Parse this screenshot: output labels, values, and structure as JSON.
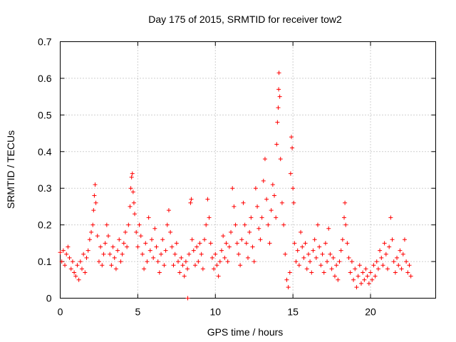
{
  "chart_data": {
    "type": "scatter",
    "title": "Day 175 of 2015, SRMTID for receiver tow2",
    "xlabel": "GPS time / hours",
    "ylabel": "SRMTID / TECUs",
    "xlim": [
      0,
      24.2
    ],
    "ylim": [
      0,
      0.7
    ],
    "x_ticks": [
      0,
      5,
      10,
      15,
      20
    ],
    "x_tick_labels": [
      "0",
      "5",
      "10",
      "15",
      "20"
    ],
    "y_ticks": [
      0,
      0.1,
      0.2,
      0.3,
      0.4,
      0.5,
      0.6,
      0.7
    ],
    "y_tick_labels": [
      "0",
      "0.1",
      "0.2",
      "0.3",
      "0.4",
      "0.5",
      "0.6",
      "0.7"
    ],
    "grid": true,
    "marker": "plus",
    "color": "#ff0000",
    "series": [
      {
        "name": "SRMTID",
        "points": [
          [
            0.0,
            0.125
          ],
          [
            0.1,
            0.1
          ],
          [
            0.2,
            0.13
          ],
          [
            0.3,
            0.09
          ],
          [
            0.4,
            0.12
          ],
          [
            0.5,
            0.14
          ],
          [
            0.6,
            0.11
          ],
          [
            0.7,
            0.08
          ],
          [
            0.8,
            0.1
          ],
          [
            0.9,
            0.07
          ],
          [
            1.0,
            0.06
          ],
          [
            1.1,
            0.09
          ],
          [
            1.2,
            0.05
          ],
          [
            1.3,
            0.1
          ],
          [
            1.4,
            0.08
          ],
          [
            1.5,
            0.12
          ],
          [
            1.6,
            0.07
          ],
          [
            1.7,
            0.11
          ],
          [
            1.8,
            0.13
          ],
          [
            1.9,
            0.16
          ],
          [
            2.0,
            0.18
          ],
          [
            2.1,
            0.2
          ],
          [
            2.15,
            0.24
          ],
          [
            2.2,
            0.28
          ],
          [
            2.25,
            0.31
          ],
          [
            2.3,
            0.26
          ],
          [
            2.4,
            0.17
          ],
          [
            2.5,
            0.1
          ],
          [
            2.6,
            0.14
          ],
          [
            2.7,
            0.09
          ],
          [
            2.8,
            0.12
          ],
          [
            2.9,
            0.15
          ],
          [
            3.0,
            0.2
          ],
          [
            3.1,
            0.17
          ],
          [
            3.2,
            0.12
          ],
          [
            3.3,
            0.09
          ],
          [
            3.4,
            0.14
          ],
          [
            3.5,
            0.11
          ],
          [
            3.6,
            0.08
          ],
          [
            3.7,
            0.13
          ],
          [
            3.8,
            0.16
          ],
          [
            3.9,
            0.1
          ],
          [
            4.0,
            0.12
          ],
          [
            4.1,
            0.15
          ],
          [
            4.2,
            0.18
          ],
          [
            4.3,
            0.14
          ],
          [
            4.4,
            0.2
          ],
          [
            4.5,
            0.25
          ],
          [
            4.55,
            0.3
          ],
          [
            4.6,
            0.33
          ],
          [
            4.65,
            0.34
          ],
          [
            4.7,
            0.29
          ],
          [
            4.75,
            0.26
          ],
          [
            4.8,
            0.23
          ],
          [
            4.9,
            0.18
          ],
          [
            5.0,
            0.14
          ],
          [
            5.1,
            0.2
          ],
          [
            5.2,
            0.17
          ],
          [
            5.3,
            0.12
          ],
          [
            5.4,
            0.08
          ],
          [
            5.5,
            0.15
          ],
          [
            5.6,
            0.1
          ],
          [
            5.7,
            0.22
          ],
          [
            5.8,
            0.13
          ],
          [
            5.9,
            0.16
          ],
          [
            6.0,
            0.11
          ],
          [
            6.1,
            0.19
          ],
          [
            6.2,
            0.14
          ],
          [
            6.3,
            0.1
          ],
          [
            6.4,
            0.07
          ],
          [
            6.5,
            0.12
          ],
          [
            6.6,
            0.16
          ],
          [
            6.7,
            0.09
          ],
          [
            6.8,
            0.13
          ],
          [
            6.9,
            0.2
          ],
          [
            7.0,
            0.24
          ],
          [
            7.1,
            0.18
          ],
          [
            7.2,
            0.14
          ],
          [
            7.3,
            0.09
          ],
          [
            7.4,
            0.12
          ],
          [
            7.5,
            0.15
          ],
          [
            7.6,
            0.1
          ],
          [
            7.7,
            0.07
          ],
          [
            7.8,
            0.11
          ],
          [
            7.9,
            0.09
          ],
          [
            8.0,
            0.06
          ],
          [
            8.1,
            0.1
          ],
          [
            8.2,
            0.08
          ],
          [
            8.22,
            0.0
          ],
          [
            8.3,
            0.12
          ],
          [
            8.4,
            0.26
          ],
          [
            8.45,
            0.27
          ],
          [
            8.5,
            0.16
          ],
          [
            8.6,
            0.13
          ],
          [
            8.7,
            0.09
          ],
          [
            8.8,
            0.14
          ],
          [
            8.9,
            0.1
          ],
          [
            9.0,
            0.15
          ],
          [
            9.1,
            0.12
          ],
          [
            9.2,
            0.08
          ],
          [
            9.3,
            0.16
          ],
          [
            9.4,
            0.2
          ],
          [
            9.5,
            0.27
          ],
          [
            9.6,
            0.22
          ],
          [
            9.7,
            0.15
          ],
          [
            9.8,
            0.11
          ],
          [
            9.9,
            0.08
          ],
          [
            10.0,
            0.12
          ],
          [
            10.1,
            0.09
          ],
          [
            10.2,
            0.06
          ],
          [
            10.3,
            0.1
          ],
          [
            10.4,
            0.13
          ],
          [
            10.5,
            0.17
          ],
          [
            10.6,
            0.11
          ],
          [
            10.7,
            0.15
          ],
          [
            10.8,
            0.1
          ],
          [
            10.9,
            0.14
          ],
          [
            11.0,
            0.18
          ],
          [
            11.1,
            0.3
          ],
          [
            11.2,
            0.25
          ],
          [
            11.3,
            0.2
          ],
          [
            11.4,
            0.15
          ],
          [
            11.5,
            0.12
          ],
          [
            11.6,
            0.09
          ],
          [
            11.7,
            0.16
          ],
          [
            11.8,
            0.26
          ],
          [
            11.9,
            0.2
          ],
          [
            12.0,
            0.15
          ],
          [
            12.1,
            0.11
          ],
          [
            12.2,
            0.18
          ],
          [
            12.3,
            0.22
          ],
          [
            12.4,
            0.14
          ],
          [
            12.5,
            0.1
          ],
          [
            12.6,
            0.3
          ],
          [
            12.7,
            0.25
          ],
          [
            12.8,
            0.19
          ],
          [
            12.9,
            0.16
          ],
          [
            13.0,
            0.22
          ],
          [
            13.1,
            0.32
          ],
          [
            13.2,
            0.38
          ],
          [
            13.3,
            0.27
          ],
          [
            13.4,
            0.2
          ],
          [
            13.5,
            0.15
          ],
          [
            13.6,
            0.24
          ],
          [
            13.7,
            0.31
          ],
          [
            13.8,
            0.28
          ],
          [
            13.9,
            0.22
          ],
          [
            13.95,
            0.42
          ],
          [
            14.0,
            0.48
          ],
          [
            14.05,
            0.52
          ],
          [
            14.08,
            0.57
          ],
          [
            14.1,
            0.615
          ],
          [
            14.15,
            0.55
          ],
          [
            14.2,
            0.38
          ],
          [
            14.3,
            0.26
          ],
          [
            14.4,
            0.2
          ],
          [
            14.5,
            0.12
          ],
          [
            14.6,
            0.05
          ],
          [
            14.7,
            0.03
          ],
          [
            14.8,
            0.07
          ],
          [
            14.85,
            0.34
          ],
          [
            14.9,
            0.44
          ],
          [
            14.95,
            0.41
          ],
          [
            15.0,
            0.3
          ],
          [
            15.05,
            0.26
          ],
          [
            15.1,
            0.15
          ],
          [
            15.2,
            0.1
          ],
          [
            15.3,
            0.13
          ],
          [
            15.4,
            0.09
          ],
          [
            15.5,
            0.18
          ],
          [
            15.6,
            0.14
          ],
          [
            15.7,
            0.11
          ],
          [
            15.8,
            0.15
          ],
          [
            15.9,
            0.08
          ],
          [
            16.0,
            0.12
          ],
          [
            16.1,
            0.1
          ],
          [
            16.2,
            0.07
          ],
          [
            16.3,
            0.13
          ],
          [
            16.4,
            0.16
          ],
          [
            16.5,
            0.11
          ],
          [
            16.6,
            0.2
          ],
          [
            16.7,
            0.14
          ],
          [
            16.8,
            0.09
          ],
          [
            16.9,
            0.12
          ],
          [
            17.0,
            0.07
          ],
          [
            17.1,
            0.15
          ],
          [
            17.2,
            0.1
          ],
          [
            17.3,
            0.19
          ],
          [
            17.4,
            0.12
          ],
          [
            17.5,
            0.08
          ],
          [
            17.6,
            0.11
          ],
          [
            17.7,
            0.06
          ],
          [
            17.8,
            0.09
          ],
          [
            17.9,
            0.05
          ],
          [
            18.0,
            0.1
          ],
          [
            18.1,
            0.13
          ],
          [
            18.2,
            0.16
          ],
          [
            18.3,
            0.22
          ],
          [
            18.35,
            0.26
          ],
          [
            18.4,
            0.2
          ],
          [
            18.5,
            0.15
          ],
          [
            18.6,
            0.11
          ],
          [
            18.7,
            0.07
          ],
          [
            18.8,
            0.1
          ],
          [
            18.9,
            0.05
          ],
          [
            19.0,
            0.08
          ],
          [
            19.1,
            0.03
          ],
          [
            19.2,
            0.06
          ],
          [
            19.3,
            0.09
          ],
          [
            19.4,
            0.04
          ],
          [
            19.5,
            0.07
          ],
          [
            19.6,
            0.05
          ],
          [
            19.7,
            0.08
          ],
          [
            19.8,
            0.06
          ],
          [
            19.9,
            0.04
          ],
          [
            20.0,
            0.07
          ],
          [
            20.1,
            0.05
          ],
          [
            20.2,
            0.09
          ],
          [
            20.3,
            0.06
          ],
          [
            20.4,
            0.1
          ],
          [
            20.5,
            0.08
          ],
          [
            20.6,
            0.13
          ],
          [
            20.7,
            0.11
          ],
          [
            20.8,
            0.09
          ],
          [
            20.9,
            0.15
          ],
          [
            21.0,
            0.12
          ],
          [
            21.1,
            0.08
          ],
          [
            21.2,
            0.14
          ],
          [
            21.3,
            0.22
          ],
          [
            21.4,
            0.16
          ],
          [
            21.5,
            0.1
          ],
          [
            21.6,
            0.07
          ],
          [
            21.7,
            0.11
          ],
          [
            21.8,
            0.09
          ],
          [
            21.9,
            0.13
          ],
          [
            22.0,
            0.08
          ],
          [
            22.1,
            0.12
          ],
          [
            22.2,
            0.16
          ],
          [
            22.3,
            0.1
          ],
          [
            22.4,
            0.07
          ],
          [
            22.5,
            0.09
          ],
          [
            22.6,
            0.06
          ]
        ]
      }
    ]
  }
}
